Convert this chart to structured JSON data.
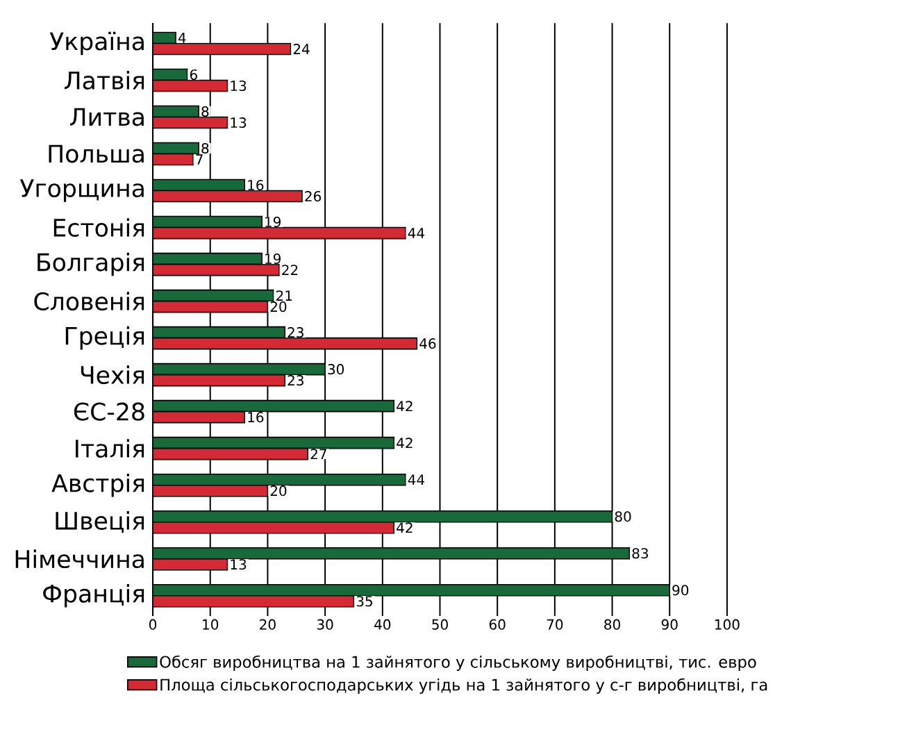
{
  "chart_data": {
    "type": "bar",
    "orientation": "horizontal",
    "categories": [
      "Україна",
      "Латвія",
      "Литва",
      "Польша",
      "Угорщина",
      "Естонія",
      "Болгарія",
      "Словенія",
      "Греція",
      "Чехія",
      "ЄС-28",
      "Італія",
      "Австрія",
      "Швеція",
      "Німеччина",
      "Франція"
    ],
    "series": [
      {
        "name": "Обсяг виробництва на 1 зайнятого у сільському виробництві, тис. евро",
        "color": "#186a3b",
        "values": [
          4,
          6,
          8,
          8,
          16,
          19,
          19,
          21,
          23,
          30,
          42,
          42,
          44,
          80,
          83,
          90
        ]
      },
      {
        "name": "Площа сільськогосподарських угідь на 1 зайнятого у с-г виробництві, га",
        "color": "#d42a35",
        "values": [
          24,
          13,
          13,
          7,
          26,
          44,
          22,
          20,
          46,
          23,
          16,
          27,
          20,
          42,
          13,
          35
        ]
      }
    ],
    "xlim": [
      0,
      100
    ],
    "xticks": [
      0,
      10,
      20,
      30,
      40,
      50,
      60,
      70,
      80,
      90,
      100
    ],
    "grid": "x",
    "legend": "bottom",
    "data_labels": true
  }
}
